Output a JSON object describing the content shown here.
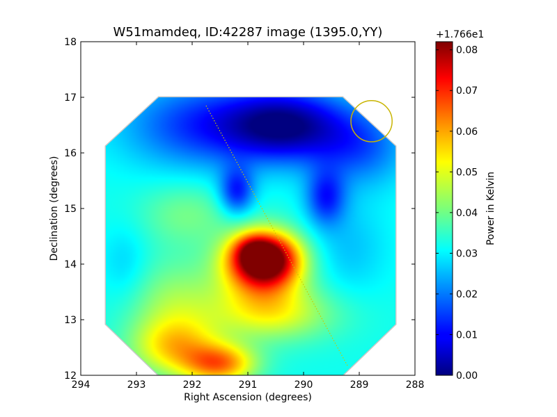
{
  "chart_data": {
    "type": "heatmap",
    "title": "W51mamdeq, ID:42287 image (1395.0,YY)",
    "xlabel": "Right Ascension (degrees)",
    "ylabel": "Declination (degrees)",
    "xlim": [
      294,
      288
    ],
    "ylim": [
      12,
      18
    ],
    "x_ticks": [
      {
        "value": 294,
        "label": "294"
      },
      {
        "value": 293,
        "label": "293"
      },
      {
        "value": 292,
        "label": "292"
      },
      {
        "value": 291,
        "label": "291"
      },
      {
        "value": 290,
        "label": "290"
      },
      {
        "value": 289,
        "label": "289"
      },
      {
        "value": 288,
        "label": "288"
      }
    ],
    "y_ticks": [
      {
        "value": 12,
        "label": "12"
      },
      {
        "value": 13,
        "label": "13"
      },
      {
        "value": 14,
        "label": "14"
      },
      {
        "value": 15,
        "label": "15"
      },
      {
        "value": 16,
        "label": "16"
      },
      {
        "value": 17,
        "label": "17"
      },
      {
        "value": 18,
        "label": "18"
      }
    ],
    "colorbar": {
      "label": "Power in Kelvin",
      "offset": "+1.766e1",
      "range": [
        0.0,
        0.082
      ],
      "colormap": "jet",
      "ticks": [
        {
          "value": 0.0,
          "label": "0.00"
        },
        {
          "value": 0.01,
          "label": "0.01"
        },
        {
          "value": 0.02,
          "label": "0.02"
        },
        {
          "value": 0.03,
          "label": "0.03"
        },
        {
          "value": 0.04,
          "label": "0.04"
        },
        {
          "value": 0.05,
          "label": "0.05"
        },
        {
          "value": 0.06,
          "label": "0.06"
        },
        {
          "value": 0.07,
          "label": "0.07"
        },
        {
          "value": 0.08,
          "label": "0.08"
        }
      ]
    },
    "footprint_polygon": [
      [
        293.55,
        16.12
      ],
      [
        292.6,
        17.0
      ],
      [
        289.3,
        17.0
      ],
      [
        288.35,
        16.12
      ],
      [
        288.35,
        12.92
      ],
      [
        289.3,
        12.0
      ],
      [
        292.6,
        12.0
      ],
      [
        293.55,
        12.92
      ]
    ],
    "background_level": 0.032,
    "features": [
      {
        "ra": 290.7,
        "dec": 14.1,
        "amp": 0.05,
        "sigma_ra": 0.42,
        "sigma_dec": 0.32
      },
      {
        "ra": 290.9,
        "dec": 14.25,
        "amp": 0.012,
        "sigma_ra": 0.22,
        "sigma_dec": 0.18
      },
      {
        "ra": 290.75,
        "dec": 13.8,
        "amp": 0.02,
        "sigma_ra": 0.55,
        "sigma_dec": 0.5
      },
      {
        "ra": 291.5,
        "dec": 12.2,
        "amp": 0.028,
        "sigma_ra": 0.45,
        "sigma_dec": 0.25
      },
      {
        "ra": 292.3,
        "dec": 12.5,
        "amp": 0.018,
        "sigma_ra": 0.55,
        "sigma_dec": 0.35
      },
      {
        "ra": 290.5,
        "dec": 13.1,
        "amp": 0.014,
        "sigma_ra": 0.8,
        "sigma_dec": 0.35
      },
      {
        "ra": 292.3,
        "dec": 13.2,
        "amp": 0.012,
        "sigma_ra": 0.6,
        "sigma_dec": 0.6
      },
      {
        "ra": 292.1,
        "dec": 14.9,
        "amp": 0.008,
        "sigma_ra": 0.6,
        "sigma_dec": 0.4
      },
      {
        "ra": 290.3,
        "dec": 16.5,
        "amp": -0.028,
        "sigma_ra": 0.75,
        "sigma_dec": 0.45
      },
      {
        "ra": 291.8,
        "dec": 16.5,
        "amp": -0.018,
        "sigma_ra": 1.0,
        "sigma_dec": 0.55
      },
      {
        "ra": 289.0,
        "dec": 16.1,
        "amp": -0.014,
        "sigma_ra": 0.6,
        "sigma_dec": 0.5
      },
      {
        "ra": 291.2,
        "dec": 15.3,
        "amp": -0.02,
        "sigma_ra": 0.22,
        "sigma_dec": 0.3
      },
      {
        "ra": 289.6,
        "dec": 15.2,
        "amp": -0.018,
        "sigma_ra": 0.25,
        "sigma_dec": 0.35
      },
      {
        "ra": 289.2,
        "dec": 14.3,
        "amp": -0.006,
        "sigma_ra": 0.5,
        "sigma_dec": 0.6
      },
      {
        "ra": 293.2,
        "dec": 14.0,
        "amp": -0.005,
        "sigma_ra": 0.3,
        "sigma_dec": 0.5
      }
    ],
    "beam_circle": {
      "ra": 288.78,
      "dec": 16.57,
      "radius_deg": 0.37,
      "color": "#c8b400"
    },
    "scan_line": {
      "ra_start": 291.75,
      "dec_start": 16.85,
      "ra_end": 289.2,
      "dec_end": 12.15,
      "color": "#c8c800"
    }
  }
}
